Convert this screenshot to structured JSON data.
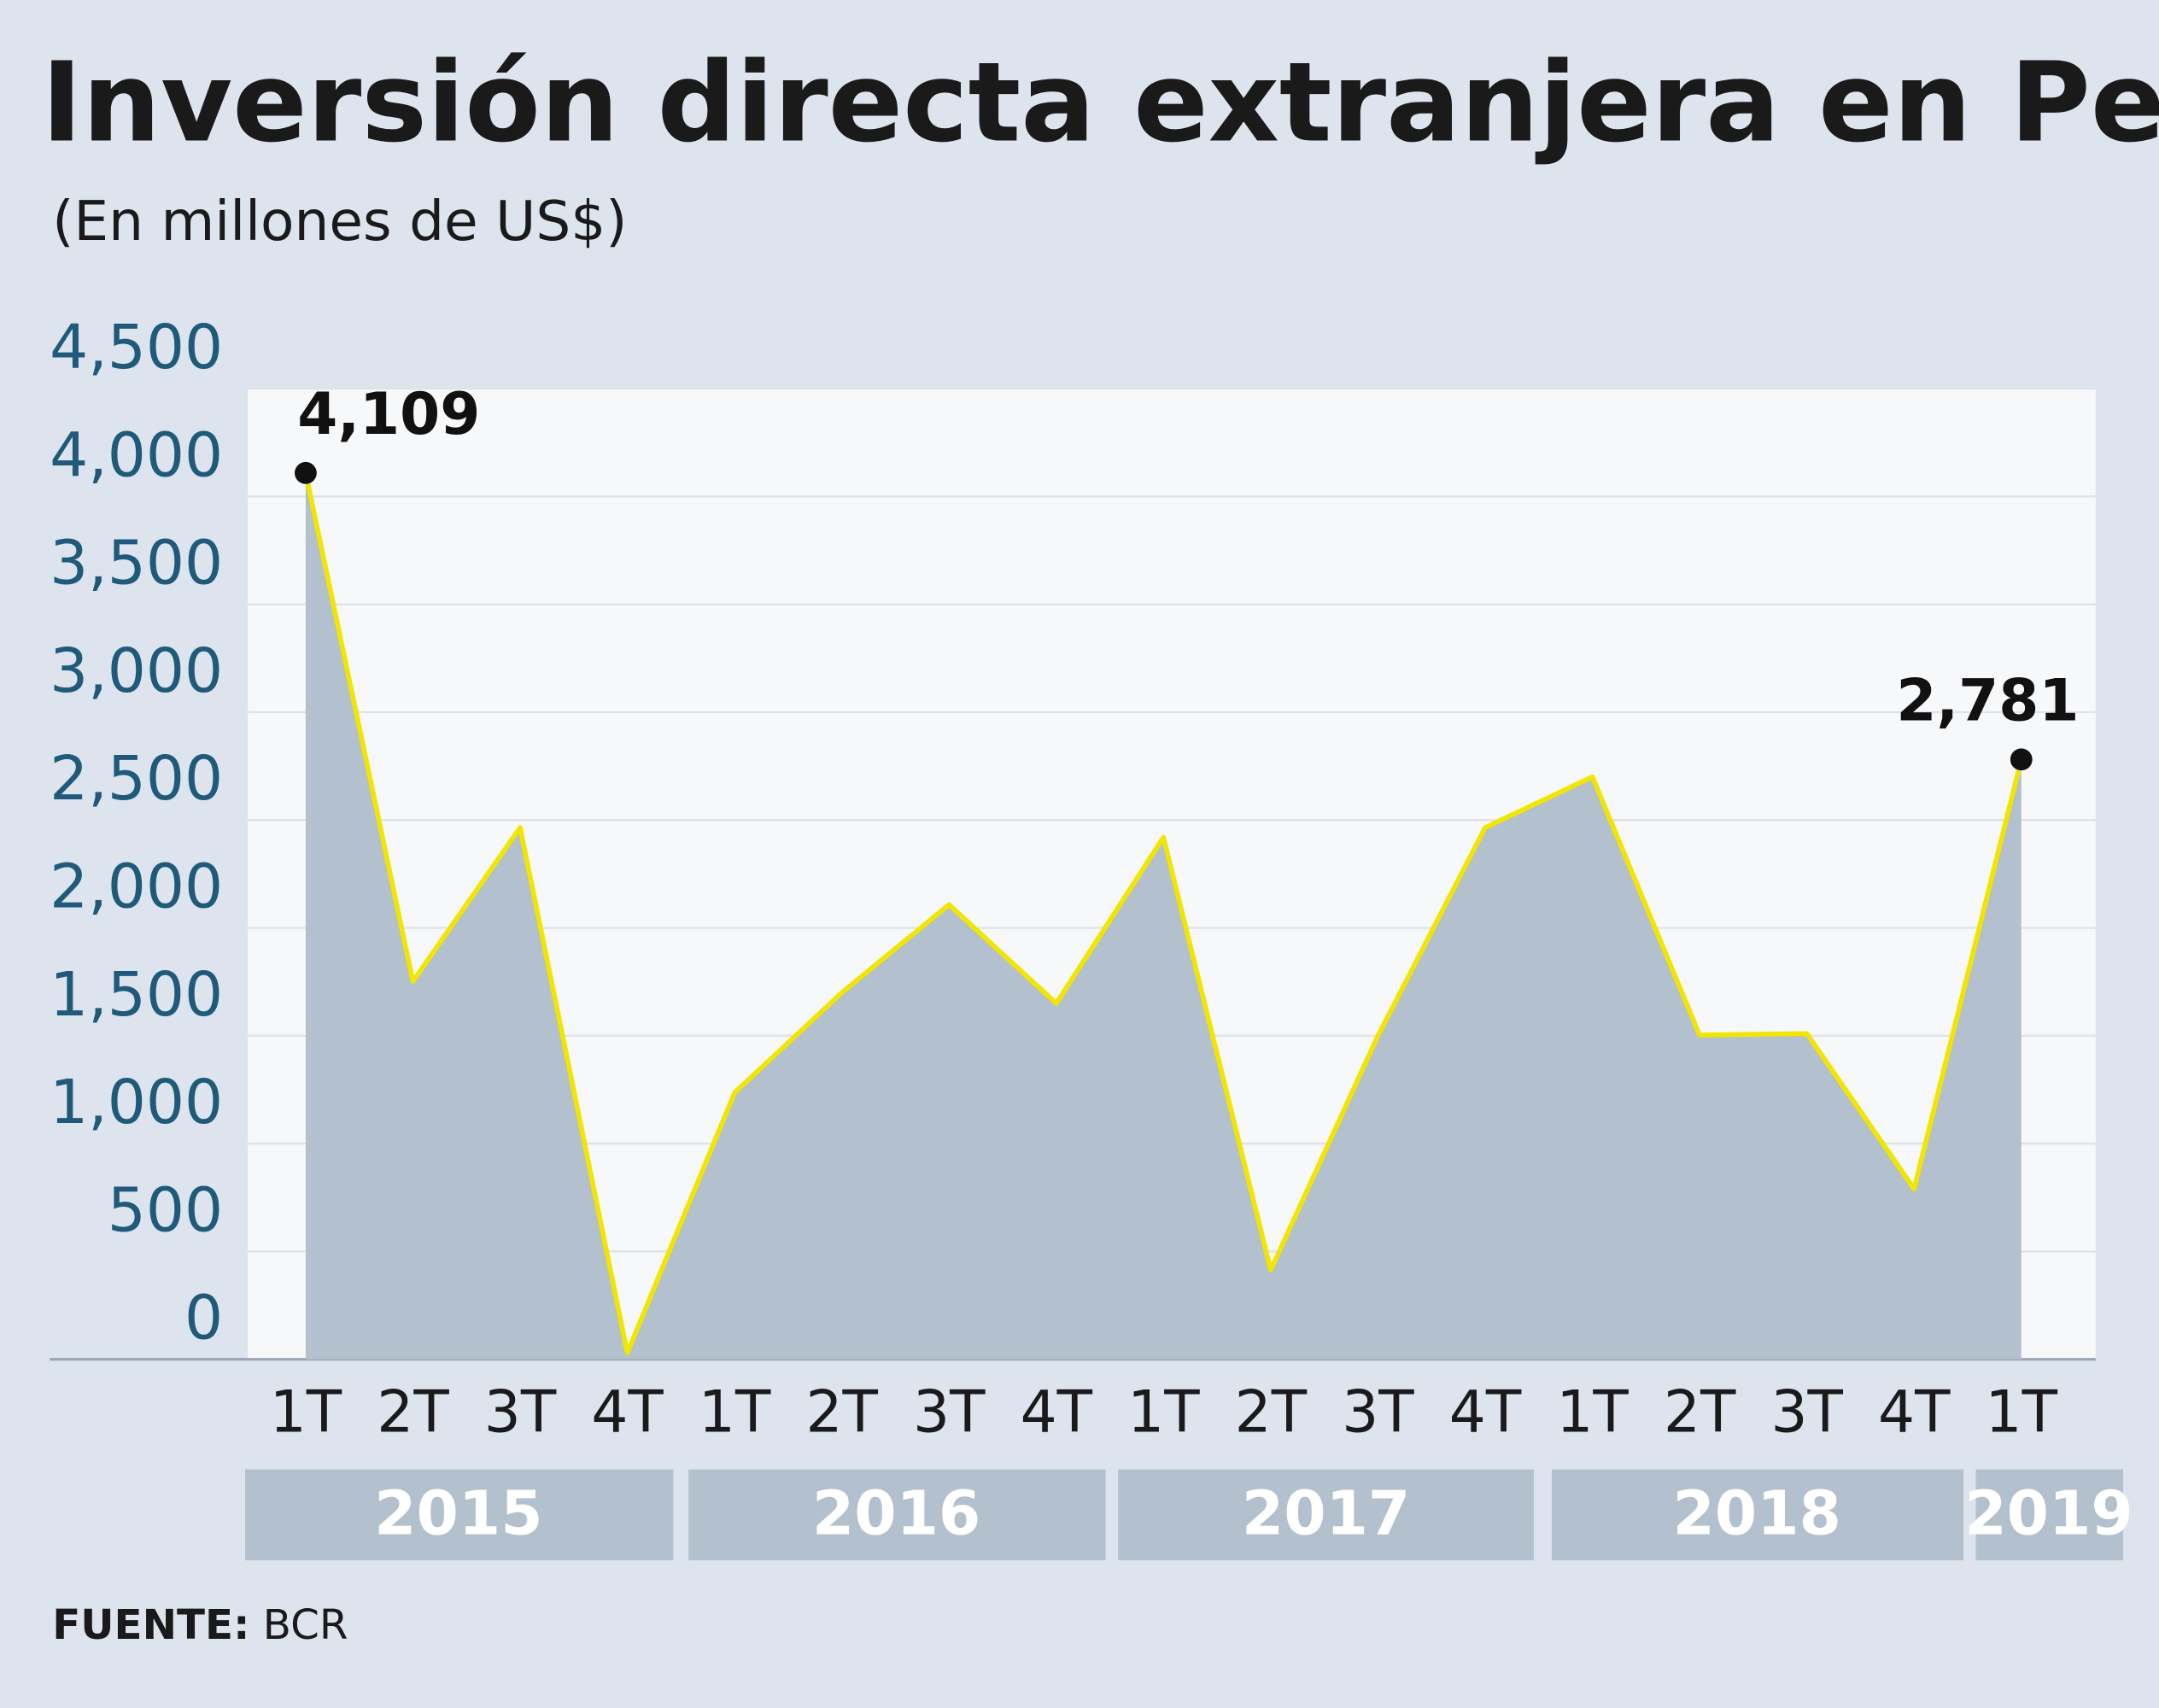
{
  "chart_data": {
    "type": "area",
    "title": "Inversión directa extranjera en Perú",
    "subtitle": "(En millones de US$)",
    "categories": [
      "1T",
      "2T",
      "3T",
      "4T",
      "1T",
      "2T",
      "3T",
      "4T",
      "1T",
      "2T",
      "3T",
      "4T",
      "1T",
      "2T",
      "3T",
      "4T",
      "1T"
    ],
    "years": [
      "2015",
      "2016",
      "2017",
      "2018",
      "2019"
    ],
    "values": [
      4109,
      1752,
      2465,
      30,
      1236,
      1700,
      2108,
      1650,
      2420,
      414,
      1500,
      2465,
      2700,
      1503,
      1510,
      790,
      2781
    ],
    "value_labels": [
      "4,109",
      null,
      null,
      null,
      null,
      null,
      null,
      null,
      null,
      null,
      null,
      null,
      null,
      null,
      null,
      null,
      "2,781"
    ],
    "color": "#b3c0cd",
    "line_color": "#f2e600",
    "ylim": [
      0,
      4500
    ],
    "yticks": [
      0,
      500,
      {
        "value": 1000,
        "label": "1,000"
      },
      {
        "value": 1500,
        "label": "1,500"
      },
      {
        "value": 2000,
        "label": "2,000"
      },
      {
        "value": 2500,
        "label": "2,500"
      },
      {
        "value": 3000,
        "label": "3,000"
      },
      {
        "value": 3500,
        "label": "3,500"
      },
      {
        "value": 4000,
        "label": "4,000"
      },
      {
        "value": 4500,
        "label": "4,500"
      }
    ],
    "grid": true,
    "source": {
      "label": "FUENTE:",
      "text": "BCR"
    }
  }
}
